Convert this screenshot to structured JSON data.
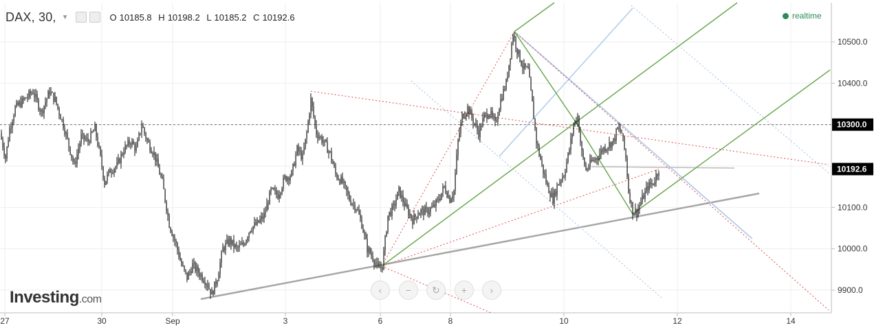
{
  "header": {
    "symbol": "DAX, 30,",
    "open_label": "O",
    "open": "10185.8",
    "high_label": "H",
    "high": "10198.2",
    "low_label": "L",
    "low": "10185.2",
    "close_label": "C",
    "close": "10192.6"
  },
  "realtime_label": "realtime",
  "logo": {
    "main": "Investing",
    "suffix": ".com"
  },
  "nav_icons": [
    "chevron-left-icon",
    "zoom-out-icon",
    "reset-icon",
    "zoom-in-icon",
    "chevron-right-icon"
  ],
  "colors": {
    "candles": "#111111",
    "green_lines": "#6aa84f",
    "blue_lines": "#a9c8e8",
    "red_dotted": "#e05a5a",
    "trendline": "#a6a6a6",
    "realtime": "#2a8c56"
  },
  "chart_data": {
    "type": "candlestick",
    "ylim": [
      9870,
      10560
    ],
    "y_ticks": [
      9900,
      10000,
      10100,
      10200,
      10300,
      10400,
      10500
    ],
    "y_tick_labels": [
      "9900.0",
      "10000.0",
      "10100.0",
      "10200.0",
      "10300.0",
      "10400.0",
      "10500.0"
    ],
    "x_ticks": [
      "27",
      "30",
      "Sep",
      "3",
      "6",
      "8",
      "10",
      "12",
      "14"
    ],
    "price_labels": [
      {
        "value": 10300,
        "label": "10300.0"
      },
      {
        "value": 10192.6,
        "label": "10192.6"
      }
    ],
    "horizontal_level": 10300,
    "price_path": [
      [
        0,
        10280
      ],
      [
        8,
        10220
      ],
      [
        14,
        10290
      ],
      [
        22,
        10340
      ],
      [
        35,
        10360
      ],
      [
        48,
        10380
      ],
      [
        60,
        10330
      ],
      [
        72,
        10380
      ],
      [
        80,
        10360
      ],
      [
        92,
        10300
      ],
      [
        100,
        10250
      ],
      [
        108,
        10200
      ],
      [
        118,
        10270
      ],
      [
        128,
        10260
      ],
      [
        138,
        10290
      ],
      [
        146,
        10220
      ],
      [
        152,
        10160
      ],
      [
        160,
        10190
      ],
      [
        170,
        10200
      ],
      [
        180,
        10240
      ],
      [
        190,
        10260
      ],
      [
        198,
        10240
      ],
      [
        206,
        10300
      ],
      [
        214,
        10260
      ],
      [
        224,
        10230
      ],
      [
        236,
        10160
      ],
      [
        246,
        10060
      ],
      [
        256,
        10010
      ],
      [
        264,
        9960
      ],
      [
        272,
        9930
      ],
      [
        280,
        9960
      ],
      [
        290,
        9940
      ],
      [
        300,
        9920
      ],
      [
        308,
        9890
      ],
      [
        316,
        9930
      ],
      [
        324,
        10000
      ],
      [
        334,
        10020
      ],
      [
        344,
        10000
      ],
      [
        354,
        10010
      ],
      [
        364,
        10050
      ],
      [
        374,
        10060
      ],
      [
        384,
        10080
      ],
      [
        394,
        10140
      ],
      [
        404,
        10130
      ],
      [
        414,
        10170
      ],
      [
        424,
        10180
      ],
      [
        432,
        10240
      ],
      [
        440,
        10220
      ],
      [
        446,
        10280
      ],
      [
        452,
        10360
      ],
      [
        460,
        10280
      ],
      [
        470,
        10260
      ],
      [
        480,
        10230
      ],
      [
        488,
        10180
      ],
      [
        498,
        10160
      ],
      [
        508,
        10120
      ],
      [
        518,
        10100
      ],
      [
        526,
        10060
      ],
      [
        534,
        10000
      ],
      [
        542,
        9980
      ],
      [
        550,
        9950
      ],
      [
        556,
        9960
      ],
      [
        564,
        10080
      ],
      [
        572,
        10100
      ],
      [
        580,
        10140
      ],
      [
        590,
        10100
      ],
      [
        600,
        10070
      ],
      [
        610,
        10090
      ],
      [
        620,
        10090
      ],
      [
        630,
        10100
      ],
      [
        638,
        10120
      ],
      [
        646,
        10150
      ],
      [
        654,
        10120
      ],
      [
        660,
        10140
      ],
      [
        666,
        10260
      ],
      [
        672,
        10320
      ],
      [
        680,
        10340
      ],
      [
        688,
        10310
      ],
      [
        696,
        10280
      ],
      [
        704,
        10320
      ],
      [
        712,
        10330
      ],
      [
        720,
        10300
      ],
      [
        728,
        10360
      ],
      [
        736,
        10400
      ],
      [
        742,
        10470
      ],
      [
        746,
        10520
      ],
      [
        752,
        10480
      ],
      [
        760,
        10440
      ],
      [
        768,
        10430
      ],
      [
        774,
        10350
      ],
      [
        780,
        10260
      ],
      [
        788,
        10200
      ],
      [
        796,
        10150
      ],
      [
        804,
        10120
      ],
      [
        812,
        10160
      ],
      [
        820,
        10180
      ],
      [
        828,
        10240
      ],
      [
        834,
        10300
      ],
      [
        840,
        10320
      ],
      [
        846,
        10230
      ],
      [
        852,
        10190
      ],
      [
        860,
        10210
      ],
      [
        868,
        10220
      ],
      [
        876,
        10240
      ],
      [
        884,
        10250
      ],
      [
        892,
        10260
      ],
      [
        898,
        10290
      ],
      [
        904,
        10280
      ],
      [
        910,
        10220
      ],
      [
        914,
        10140
      ],
      [
        920,
        10090
      ],
      [
        926,
        10090
      ],
      [
        934,
        10120
      ],
      [
        942,
        10150
      ],
      [
        950,
        10160
      ],
      [
        958,
        10192.6
      ]
    ]
  }
}
